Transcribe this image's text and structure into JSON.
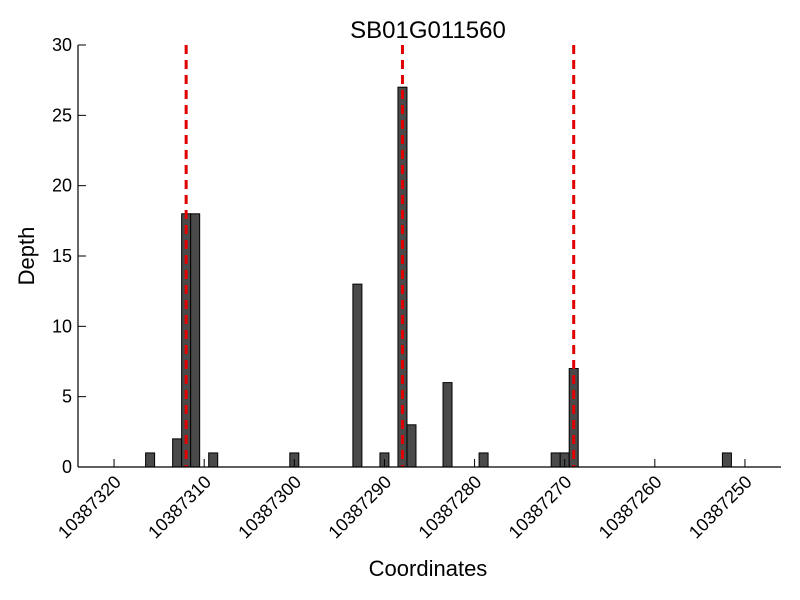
{
  "chart_data": {
    "type": "bar",
    "title": "SB01G011560",
    "xlabel": "Coordinates",
    "ylabel": "Depth",
    "x_reversed": true,
    "xlim": [
      10387324,
      10387246
    ],
    "ylim": [
      0,
      30
    ],
    "x_ticks": [
      {
        "value": 10387320,
        "label": "10387320"
      },
      {
        "value": 10387310,
        "label": "10387310"
      },
      {
        "value": 10387300,
        "label": "10387300"
      },
      {
        "value": 10387290,
        "label": "10387290"
      },
      {
        "value": 10387280,
        "label": "10387280"
      },
      {
        "value": 10387270,
        "label": "10387270"
      },
      {
        "value": 10387260,
        "label": "10387260"
      },
      {
        "value": 10387250,
        "label": "10387250"
      }
    ],
    "y_ticks": [
      {
        "value": 0,
        "label": "0"
      },
      {
        "value": 5,
        "label": "5"
      },
      {
        "value": 10,
        "label": "10"
      },
      {
        "value": 15,
        "label": "15"
      },
      {
        "value": 20,
        "label": "20"
      },
      {
        "value": 25,
        "label": "25"
      },
      {
        "value": 30,
        "label": "30"
      }
    ],
    "bars": [
      {
        "x": 10387316,
        "y": 1
      },
      {
        "x": 10387313,
        "y": 2
      },
      {
        "x": 10387312,
        "y": 18
      },
      {
        "x": 10387311,
        "y": 18
      },
      {
        "x": 10387309,
        "y": 1
      },
      {
        "x": 10387300,
        "y": 1
      },
      {
        "x": 10387293,
        "y": 13
      },
      {
        "x": 10387290,
        "y": 1
      },
      {
        "x": 10387288,
        "y": 27
      },
      {
        "x": 10387287,
        "y": 3
      },
      {
        "x": 10387283,
        "y": 6
      },
      {
        "x": 10387279,
        "y": 1
      },
      {
        "x": 10387271,
        "y": 1
      },
      {
        "x": 10387270,
        "y": 1
      },
      {
        "x": 10387269,
        "y": 7
      },
      {
        "x": 10387252,
        "y": 1
      }
    ],
    "reference_lines": [
      {
        "x": 10387312
      },
      {
        "x": 10387288
      },
      {
        "x": 10387269
      }
    ],
    "grid": false,
    "colors": {
      "bar_fill": "#4a4a4a",
      "bar_stroke": "#000000",
      "reference_line": "#e00000",
      "axis": "#000000"
    }
  }
}
